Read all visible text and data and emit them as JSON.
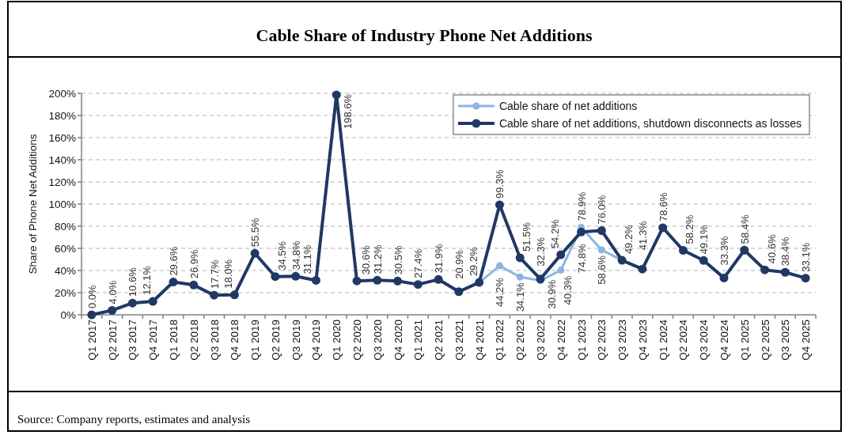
{
  "chart_data": {
    "type": "line",
    "title": "Cable Share of Industry Phone Net Additions",
    "ylabel": "Share of Phone Net Additions",
    "annotations": [
      "Source: Company reports, estimates and analysis"
    ],
    "categories": [
      "Q1 2017",
      "Q2 2017",
      "Q3 2017",
      "Q4 2017",
      "Q1 2018",
      "Q2 2018",
      "Q3 2018",
      "Q4 2018",
      "Q1 2019",
      "Q2 2019",
      "Q3 2019",
      "Q4 2019",
      "Q1 2020",
      "Q2 2020",
      "Q3 2020",
      "Q4 2020",
      "Q1 2021",
      "Q2 2021",
      "Q3 2021",
      "Q4 2021",
      "Q1 2022",
      "Q2 2022",
      "Q3 2022",
      "Q4 2022",
      "Q1 2023",
      "Q2 2023",
      "Q3 2023",
      "Q4 2023",
      "Q1 2024",
      "Q2 2024",
      "Q3 2024",
      "Q4 2024",
      "Q1 2025",
      "Q2 2025",
      "Q3 2025",
      "Q4 2025"
    ],
    "series": [
      {
        "name": "Cable share of net additions",
        "color": "#8db4e2",
        "values": [
          null,
          null,
          null,
          null,
          null,
          null,
          null,
          null,
          null,
          null,
          null,
          null,
          null,
          null,
          null,
          null,
          null,
          null,
          null,
          29.2,
          44.2,
          34.1,
          30.9,
          40.3,
          78.9,
          58.6,
          49.2,
          null,
          null,
          null,
          null,
          null,
          null,
          null,
          null,
          null
        ],
        "value_labels": [
          null,
          null,
          null,
          null,
          null,
          null,
          null,
          null,
          null,
          null,
          null,
          null,
          null,
          null,
          null,
          null,
          null,
          null,
          null,
          null,
          "44.2%",
          "34.1%",
          "30.9%",
          "40.3%",
          "78.9%",
          "58.6%",
          null,
          null,
          null,
          null,
          null,
          null,
          null,
          null,
          null,
          null
        ]
      },
      {
        "name": "Cable share of net additions, shutdown disconnects as losses",
        "color": "#203864",
        "values": [
          0.0,
          4.0,
          10.6,
          12.1,
          29.6,
          26.9,
          17.7,
          18.0,
          55.5,
          34.5,
          34.8,
          31.1,
          198.6,
          30.6,
          31.2,
          30.5,
          27.4,
          31.9,
          20.9,
          29.2,
          99.3,
          51.5,
          32.3,
          54.2,
          74.8,
          76.0,
          49.2,
          41.3,
          78.6,
          58.2,
          49.1,
          33.3,
          58.4,
          40.6,
          38.4,
          33.1
        ],
        "value_labels": [
          "0.0%",
          "4.0%",
          "10.6%",
          "12.1%",
          "29.6%",
          "26.9%",
          "17.7%",
          "18.0%",
          "55.5%",
          "34.5%",
          "34.8%",
          "31.1%",
          "198.6%",
          "30.6%",
          "31.2%",
          "30.5%",
          "27.4%",
          "31.9%",
          "20.9%",
          "29.2%",
          "99.3%",
          "51.5%",
          "32.3%",
          "54.2%",
          "74.8%",
          "76.0%",
          "49.2%",
          "41.3%",
          "78.6%",
          "58.2%",
          "49.1%",
          "33.3%",
          "58.4%",
          "40.6%",
          "38.4%",
          "33.1%"
        ]
      }
    ],
    "ylim": [
      0,
      200
    ],
    "yticks": [
      {
        "value": 0,
        "label": "0%"
      },
      {
        "value": 20,
        "label": "20%"
      },
      {
        "value": 40,
        "label": "40%"
      },
      {
        "value": 60,
        "label": "60%"
      },
      {
        "value": 80,
        "label": "80%"
      },
      {
        "value": 100,
        "label": "100%"
      },
      {
        "value": 120,
        "label": "120%"
      },
      {
        "value": 140,
        "label": "140%"
      },
      {
        "value": 160,
        "label": "160%"
      },
      {
        "value": 180,
        "label": "180%"
      },
      {
        "value": 200,
        "label": "200%"
      }
    ],
    "grid": "y",
    "legend": "top right",
    "marker": "circle"
  }
}
